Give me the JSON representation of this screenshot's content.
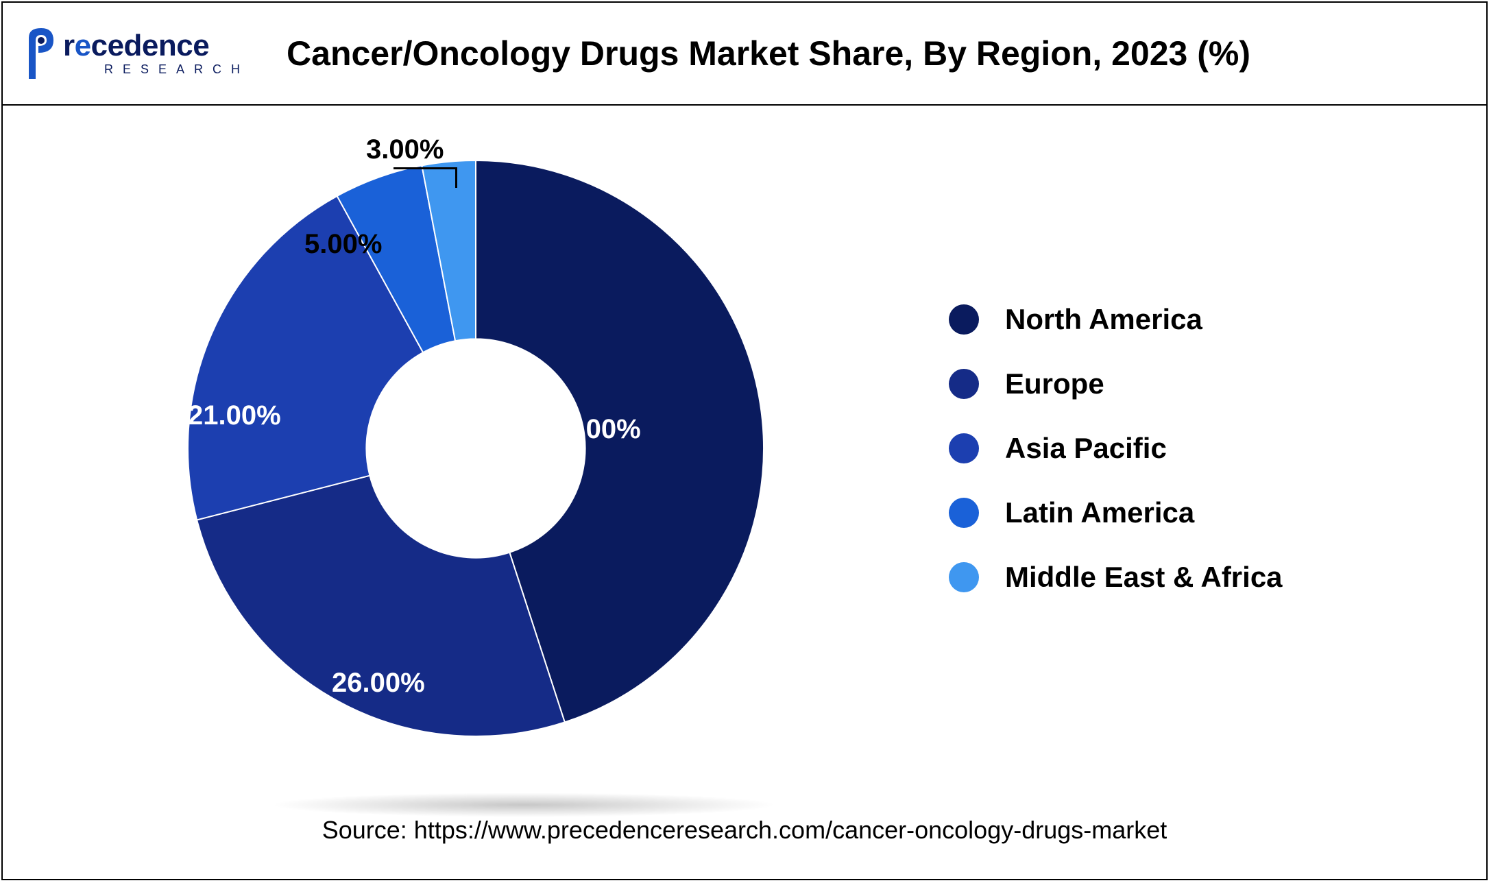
{
  "logo": {
    "brand_html": "recedence",
    "sub": "RESEARCH",
    "accent": "#1955c6",
    "dark": "#0a1b5e"
  },
  "title": "Cancer/Oncology Drugs Market Share, By Region, 2023 (%)",
  "chart": {
    "type": "donut",
    "inner_radius_pct": 38,
    "background_color": "#ffffff",
    "slices": [
      {
        "label": "North America",
        "value": 45.0,
        "color": "#0a1b5e",
        "display": "45.00%"
      },
      {
        "label": "Europe",
        "value": 26.0,
        "color": "#152b87",
        "display": "26.00%"
      },
      {
        "label": "Asia Pacific",
        "value": 21.0,
        "color": "#1c3fb0",
        "display": "21.00%"
      },
      {
        "label": "Latin America",
        "value": 5.0,
        "color": "#1a61d8",
        "display": "5.00%"
      },
      {
        "label": "Middle East & Africa",
        "value": 3.0,
        "color": "#3f97f0",
        "display": "3.00%"
      }
    ]
  },
  "source": "Source: https://www.precedenceresearch.com/cancer-oncology-drugs-market"
}
